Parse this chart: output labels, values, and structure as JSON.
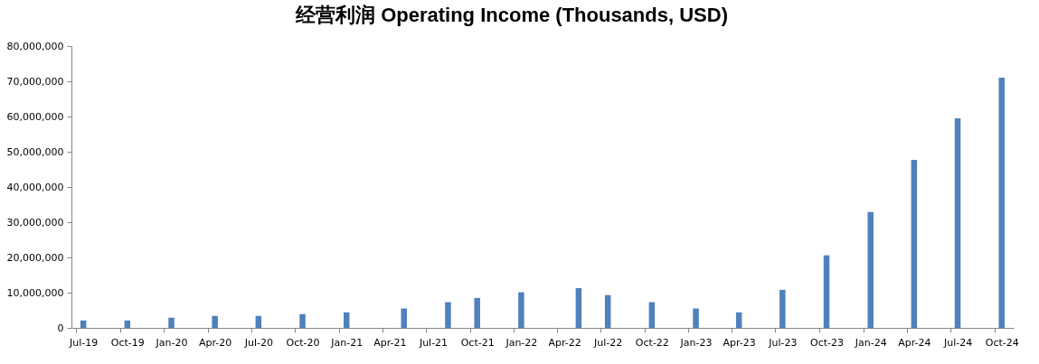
{
  "chart_data": {
    "type": "bar",
    "title": "经营利润 Operating Income (Thousands, USD)",
    "x": [
      "2019-07",
      "2019-10",
      "2020-01",
      "2020-04",
      "2020-07",
      "2020-10",
      "2021-01",
      "2021-05",
      "2021-08",
      "2021-10",
      "2022-01",
      "2022-05",
      "2022-07",
      "2022-10",
      "2023-01",
      "2023-04",
      "2023-07",
      "2023-10",
      "2024-01",
      "2024-04",
      "2024-07",
      "2024-10"
    ],
    "values": [
      2100000,
      2100000,
      2900000,
      3400000,
      3400000,
      3900000,
      4400000,
      5500000,
      7300000,
      8500000,
      10100000,
      11300000,
      9300000,
      7300000,
      5500000,
      4400000,
      10800000,
      20600000,
      32900000,
      47700000,
      59500000,
      71000000
    ],
    "color": "#4f81bd",
    "xlim": [
      "2019-07-01",
      "2024-11-01"
    ],
    "xticks": [
      {
        "value": "2019-07",
        "label": "Jul-19"
      },
      {
        "value": "2019-10",
        "label": "Oct-19"
      },
      {
        "value": "2020-01",
        "label": "Jan-20"
      },
      {
        "value": "2020-04",
        "label": "Apr-20"
      },
      {
        "value": "2020-07",
        "label": "Jul-20"
      },
      {
        "value": "2020-10",
        "label": "Oct-20"
      },
      {
        "value": "2021-01",
        "label": "Jan-21"
      },
      {
        "value": "2021-04",
        "label": "Apr-21"
      },
      {
        "value": "2021-07",
        "label": "Jul-21"
      },
      {
        "value": "2021-10",
        "label": "Oct-21"
      },
      {
        "value": "2022-01",
        "label": "Jan-22"
      },
      {
        "value": "2022-04",
        "label": "Apr-22"
      },
      {
        "value": "2022-07",
        "label": "Jul-22"
      },
      {
        "value": "2022-10",
        "label": "Oct-22"
      },
      {
        "value": "2023-01",
        "label": "Jan-23"
      },
      {
        "value": "2023-04",
        "label": "Apr-23"
      },
      {
        "value": "2023-07",
        "label": "Jul-23"
      },
      {
        "value": "2023-10",
        "label": "Oct-23"
      },
      {
        "value": "2024-01",
        "label": "Jan-24"
      },
      {
        "value": "2024-04",
        "label": "Apr-24"
      },
      {
        "value": "2024-07",
        "label": "Jul-24"
      },
      {
        "value": "2024-10",
        "label": "Oct-24"
      }
    ],
    "ylim": [
      0,
      80000000
    ],
    "yticks": [
      0,
      {
        "value": 10000000,
        "label": "10,000,000"
      },
      {
        "value": 20000000,
        "label": "20,000,000"
      },
      {
        "value": 30000000,
        "label": "30,000,000"
      },
      {
        "value": 40000000,
        "label": "40,000,000"
      },
      {
        "value": 50000000,
        "label": "50,000,000"
      },
      {
        "value": 60000000,
        "label": "60,000,000"
      },
      {
        "value": 70000000,
        "label": "70,000,000"
      },
      {
        "value": 80000000,
        "label": "80,000,000"
      }
    ]
  }
}
